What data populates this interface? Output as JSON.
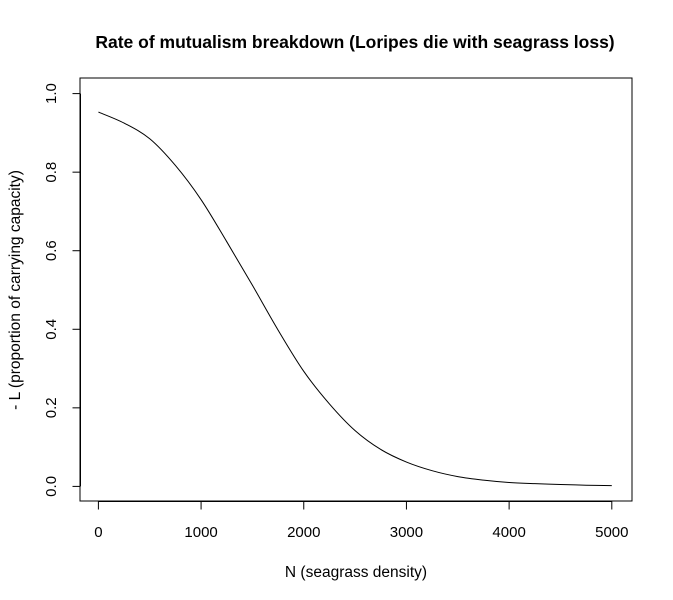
{
  "chart_data": {
    "type": "line",
    "title": "Rate of mutualism breakdown (Loripes die with seagrass loss)",
    "xlabel": "N (seagrass density)",
    "ylabel": "- L (proportion of carrying capacity)",
    "xlim": [
      0,
      5000
    ],
    "ylim": [
      0.0,
      1.0
    ],
    "x_ticks": [
      "0",
      "1000",
      "2000",
      "3000",
      "4000",
      "5000"
    ],
    "y_ticks": [
      "0.0",
      "0.2",
      "0.4",
      "0.6",
      "0.8",
      "1.0"
    ],
    "grid": false,
    "series": [
      {
        "x": [
          0,
          250,
          500,
          750,
          1000,
          1250,
          1500,
          1750,
          2000,
          2250,
          2500,
          2750,
          3000,
          3250,
          3500,
          3750,
          4000,
          4250,
          4500,
          4750,
          5000
        ],
        "y": [
          0.953,
          0.925,
          0.885,
          0.817,
          0.73,
          0.623,
          0.512,
          0.398,
          0.293,
          0.21,
          0.142,
          0.094,
          0.062,
          0.04,
          0.025,
          0.016,
          0.01,
          0.007,
          0.005,
          0.003,
          0.002
        ]
      }
    ]
  }
}
